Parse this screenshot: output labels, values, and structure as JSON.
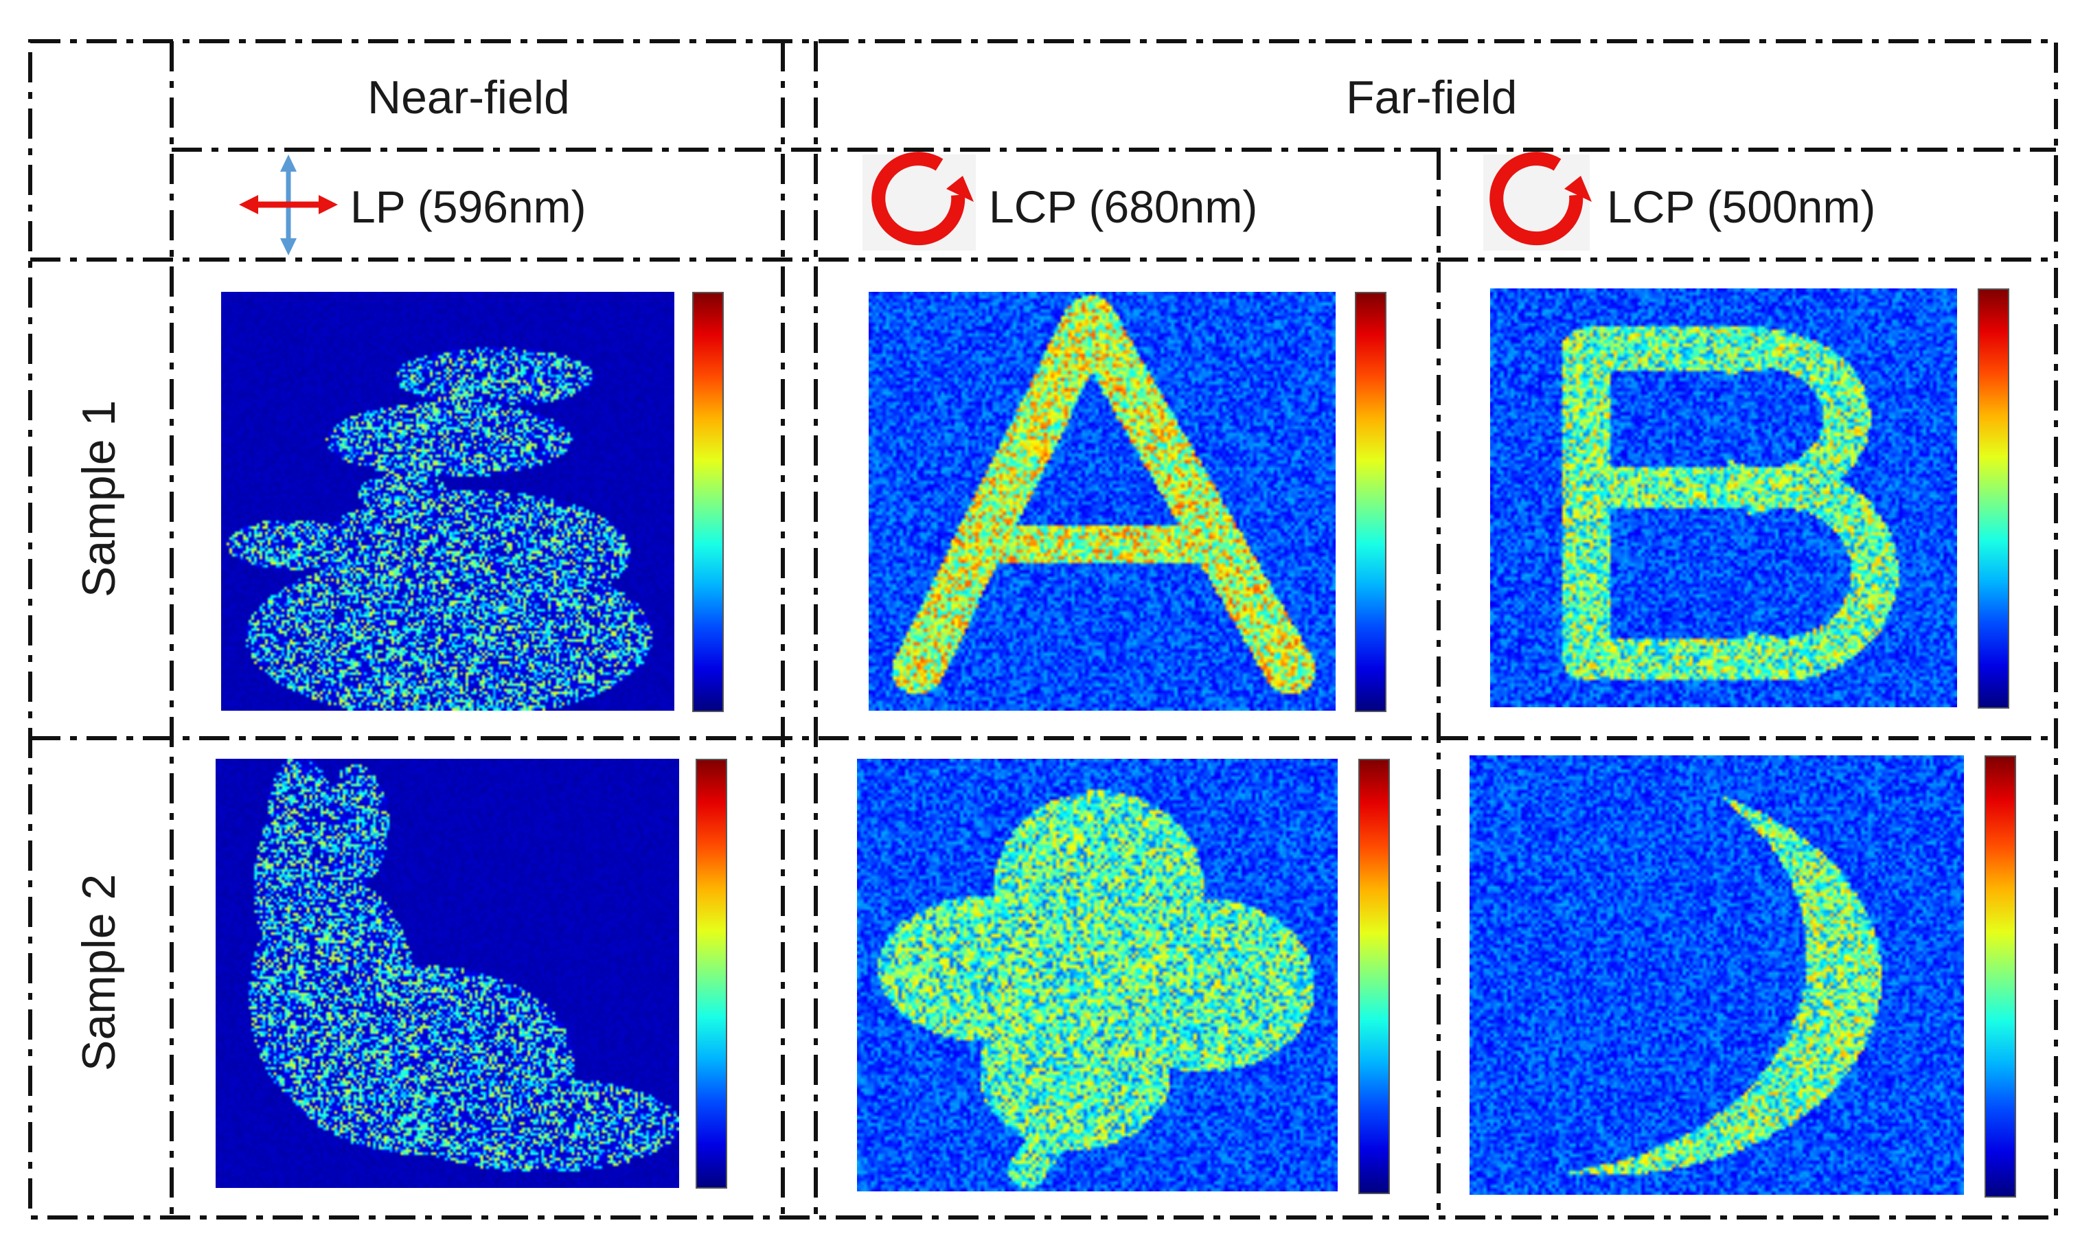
{
  "headers": {
    "near_field": "Near-field",
    "far_field": "Far-field"
  },
  "polarization": [
    {
      "label": "LP (596nm)",
      "icon": "double-arrow-linear-polarization-icon"
    },
    {
      "label": "LCP (680nm)",
      "icon": "circular-arrow-lcp-icon"
    },
    {
      "label": "LCP (500nm)",
      "icon": "circular-arrow-lcp-icon"
    }
  ],
  "rows": [
    {
      "label": "Sample 1",
      "panels": [
        "near-field-bird",
        "far-field-letter-A",
        "far-field-letter-B"
      ]
    },
    {
      "label": "Sample 2",
      "panels": [
        "near-field-rabbit",
        "far-field-clover",
        "far-field-crescent"
      ]
    }
  ],
  "colors": {
    "heatmap_background": "#00118a",
    "icon_red": "#e8120f",
    "arrow_blue": "#5b9bd5",
    "grid_line": "#111111"
  },
  "colormap": "jet"
}
